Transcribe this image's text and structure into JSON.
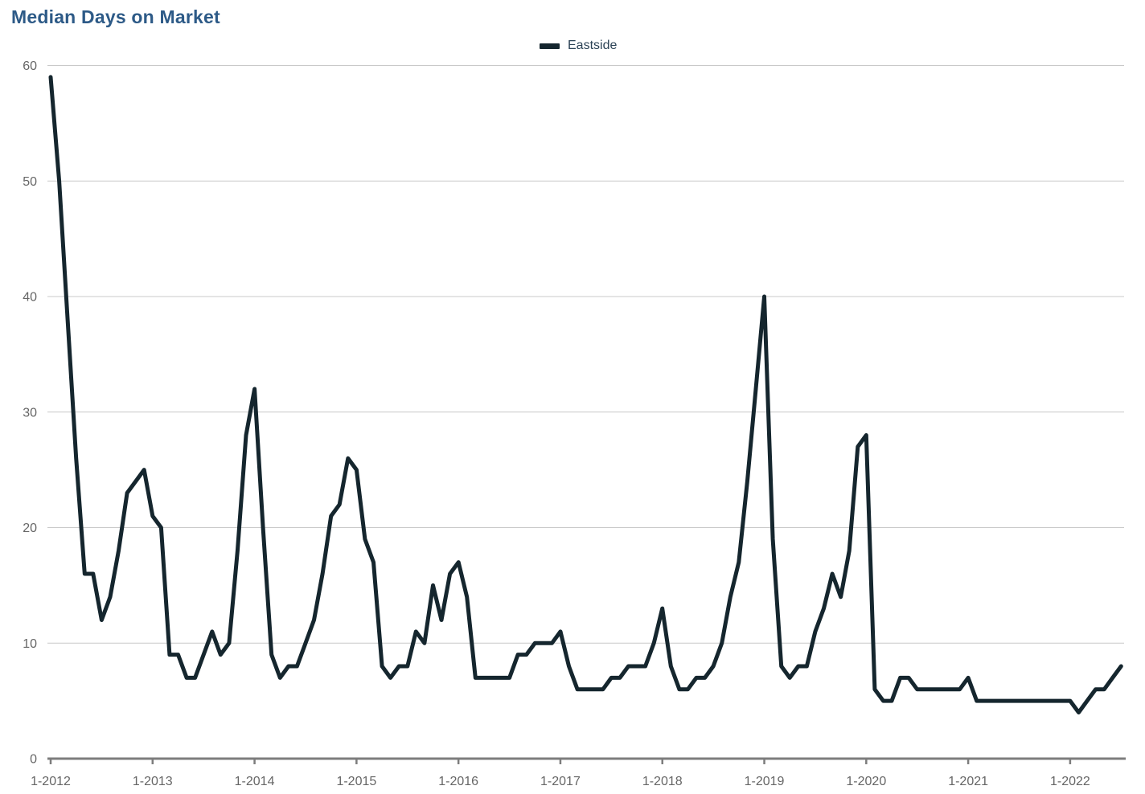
{
  "title": {
    "text": "Median Days on Market",
    "color": "#2d5a87"
  },
  "legend": {
    "series_label": "Eastside",
    "swatch_color": "#15262e",
    "text_color": "#2c4356",
    "position": "top-center"
  },
  "chart_data": {
    "type": "line",
    "title": "Median Days on Market",
    "xlabel": "",
    "ylabel": "",
    "ylim": [
      0,
      60
    ],
    "y_ticks": [
      0,
      10,
      20,
      30,
      40,
      50,
      60
    ],
    "grid": "horizontal",
    "legend_position": "top-center",
    "x_tick_labels": [
      "1-2012",
      "1-2013",
      "1-2014",
      "1-2015",
      "1-2016",
      "1-2017",
      "1-2018",
      "1-2019",
      "1-2020",
      "1-2021",
      "1-2022"
    ],
    "x_start_month": "1-2012",
    "x_end_month": "7-2022",
    "points_per_year": 12,
    "series": [
      {
        "name": "Eastside",
        "color": "#15262e",
        "monthly_values": [
          59,
          50,
          38,
          26,
          16,
          16,
          12,
          14,
          18,
          23,
          24,
          25,
          21,
          20,
          9,
          9,
          7,
          7,
          9,
          11,
          9,
          10,
          18,
          28,
          32,
          20,
          9,
          7,
          8,
          8,
          10,
          12,
          16,
          21,
          22,
          26,
          25,
          19,
          17,
          8,
          7,
          8,
          8,
          11,
          10,
          15,
          12,
          16,
          17,
          14,
          7,
          7,
          7,
          7,
          7,
          9,
          9,
          10,
          10,
          10,
          11,
          8,
          6,
          6,
          6,
          6,
          7,
          7,
          8,
          8,
          8,
          10,
          13,
          8,
          6,
          6,
          7,
          7,
          8,
          10,
          14,
          17,
          24,
          32,
          40,
          19,
          8,
          7,
          8,
          8,
          11,
          13,
          16,
          14,
          18,
          27,
          28,
          6,
          5,
          5,
          7,
          7,
          6,
          6,
          6,
          6,
          6,
          6,
          7,
          5,
          5,
          5,
          5,
          5,
          5,
          5,
          5,
          5,
          5,
          5,
          5,
          4,
          5,
          6,
          6,
          7,
          8
        ]
      }
    ],
    "axis_label_color": "#666666",
    "gridline_color": "#c9c9c9",
    "axis_line_color": "#7d7d7d"
  }
}
